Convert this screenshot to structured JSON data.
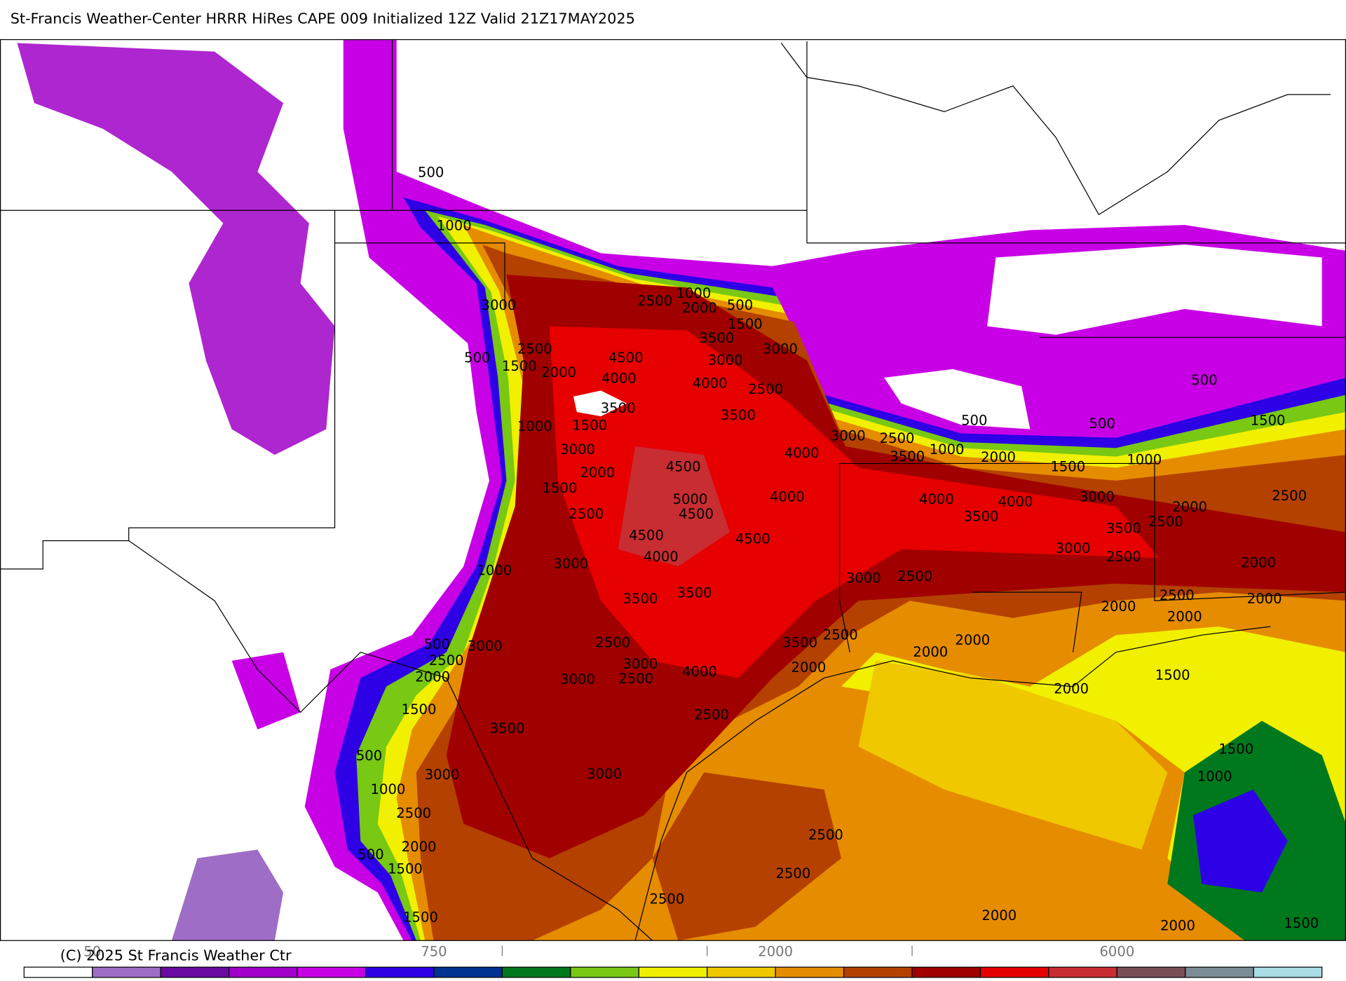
{
  "title": "St-Francis Weather-Center HRRR HiRes CAPE  009 Initialized  12Z Valid 21Z17MAY2025",
  "copyright": "(C) 2025 St Francis Weather Ctr",
  "colorbar": {
    "colors": [
      "#ffffff",
      "#9e6dc6",
      "#6a0aa0",
      "#a000c8",
      "#c800e6",
      "#2d00e6",
      "#003291",
      "#00781e",
      "#78c814",
      "#f0f000",
      "#f0c800",
      "#e68c00",
      "#b44100",
      "#a00000",
      "#e60000",
      "#c82d32",
      "#7a4e55",
      "#7c8c96",
      "#aadce6"
    ],
    "labels": [
      "50",
      "750",
      "2000",
      "6000"
    ]
  },
  "contour_labels": [
    "500",
    "1000",
    "3000",
    "1000",
    "2500",
    "2000",
    "500",
    "1500",
    "500",
    "2500",
    "1500",
    "2000",
    "4500",
    "4000",
    "3500",
    "3000",
    "3000",
    "4000",
    "2500",
    "3500",
    "3500",
    "1000",
    "1500",
    "3000",
    "2000",
    "1500",
    "4500",
    "5000",
    "4500",
    "4000",
    "4000",
    "3000",
    "2500",
    "3500",
    "1000",
    "500",
    "2000",
    "1500",
    "500",
    "1000",
    "500",
    "1500",
    "2500",
    "4500",
    "4000",
    "4500",
    "3000",
    "1000",
    "4000",
    "3500",
    "4000",
    "3000",
    "3500",
    "2500",
    "2000",
    "2500",
    "3000",
    "2500",
    "2000",
    "3000",
    "2500",
    "3500",
    "3500",
    "2500",
    "2000",
    "2000",
    "2000",
    "500",
    "3000",
    "2500",
    "2500",
    "3500",
    "2500",
    "2000",
    "2000",
    "3000",
    "2000",
    "3000",
    "2500",
    "4000",
    "2000",
    "2000",
    "1500",
    "1500",
    "2500",
    "3500",
    "500",
    "3000",
    "3000",
    "1500",
    "1000",
    "1000",
    "2500",
    "2500",
    "2000",
    "500",
    "1500",
    "2500",
    "2500",
    "1500",
    "2000",
    "2000",
    "1500"
  ]
}
